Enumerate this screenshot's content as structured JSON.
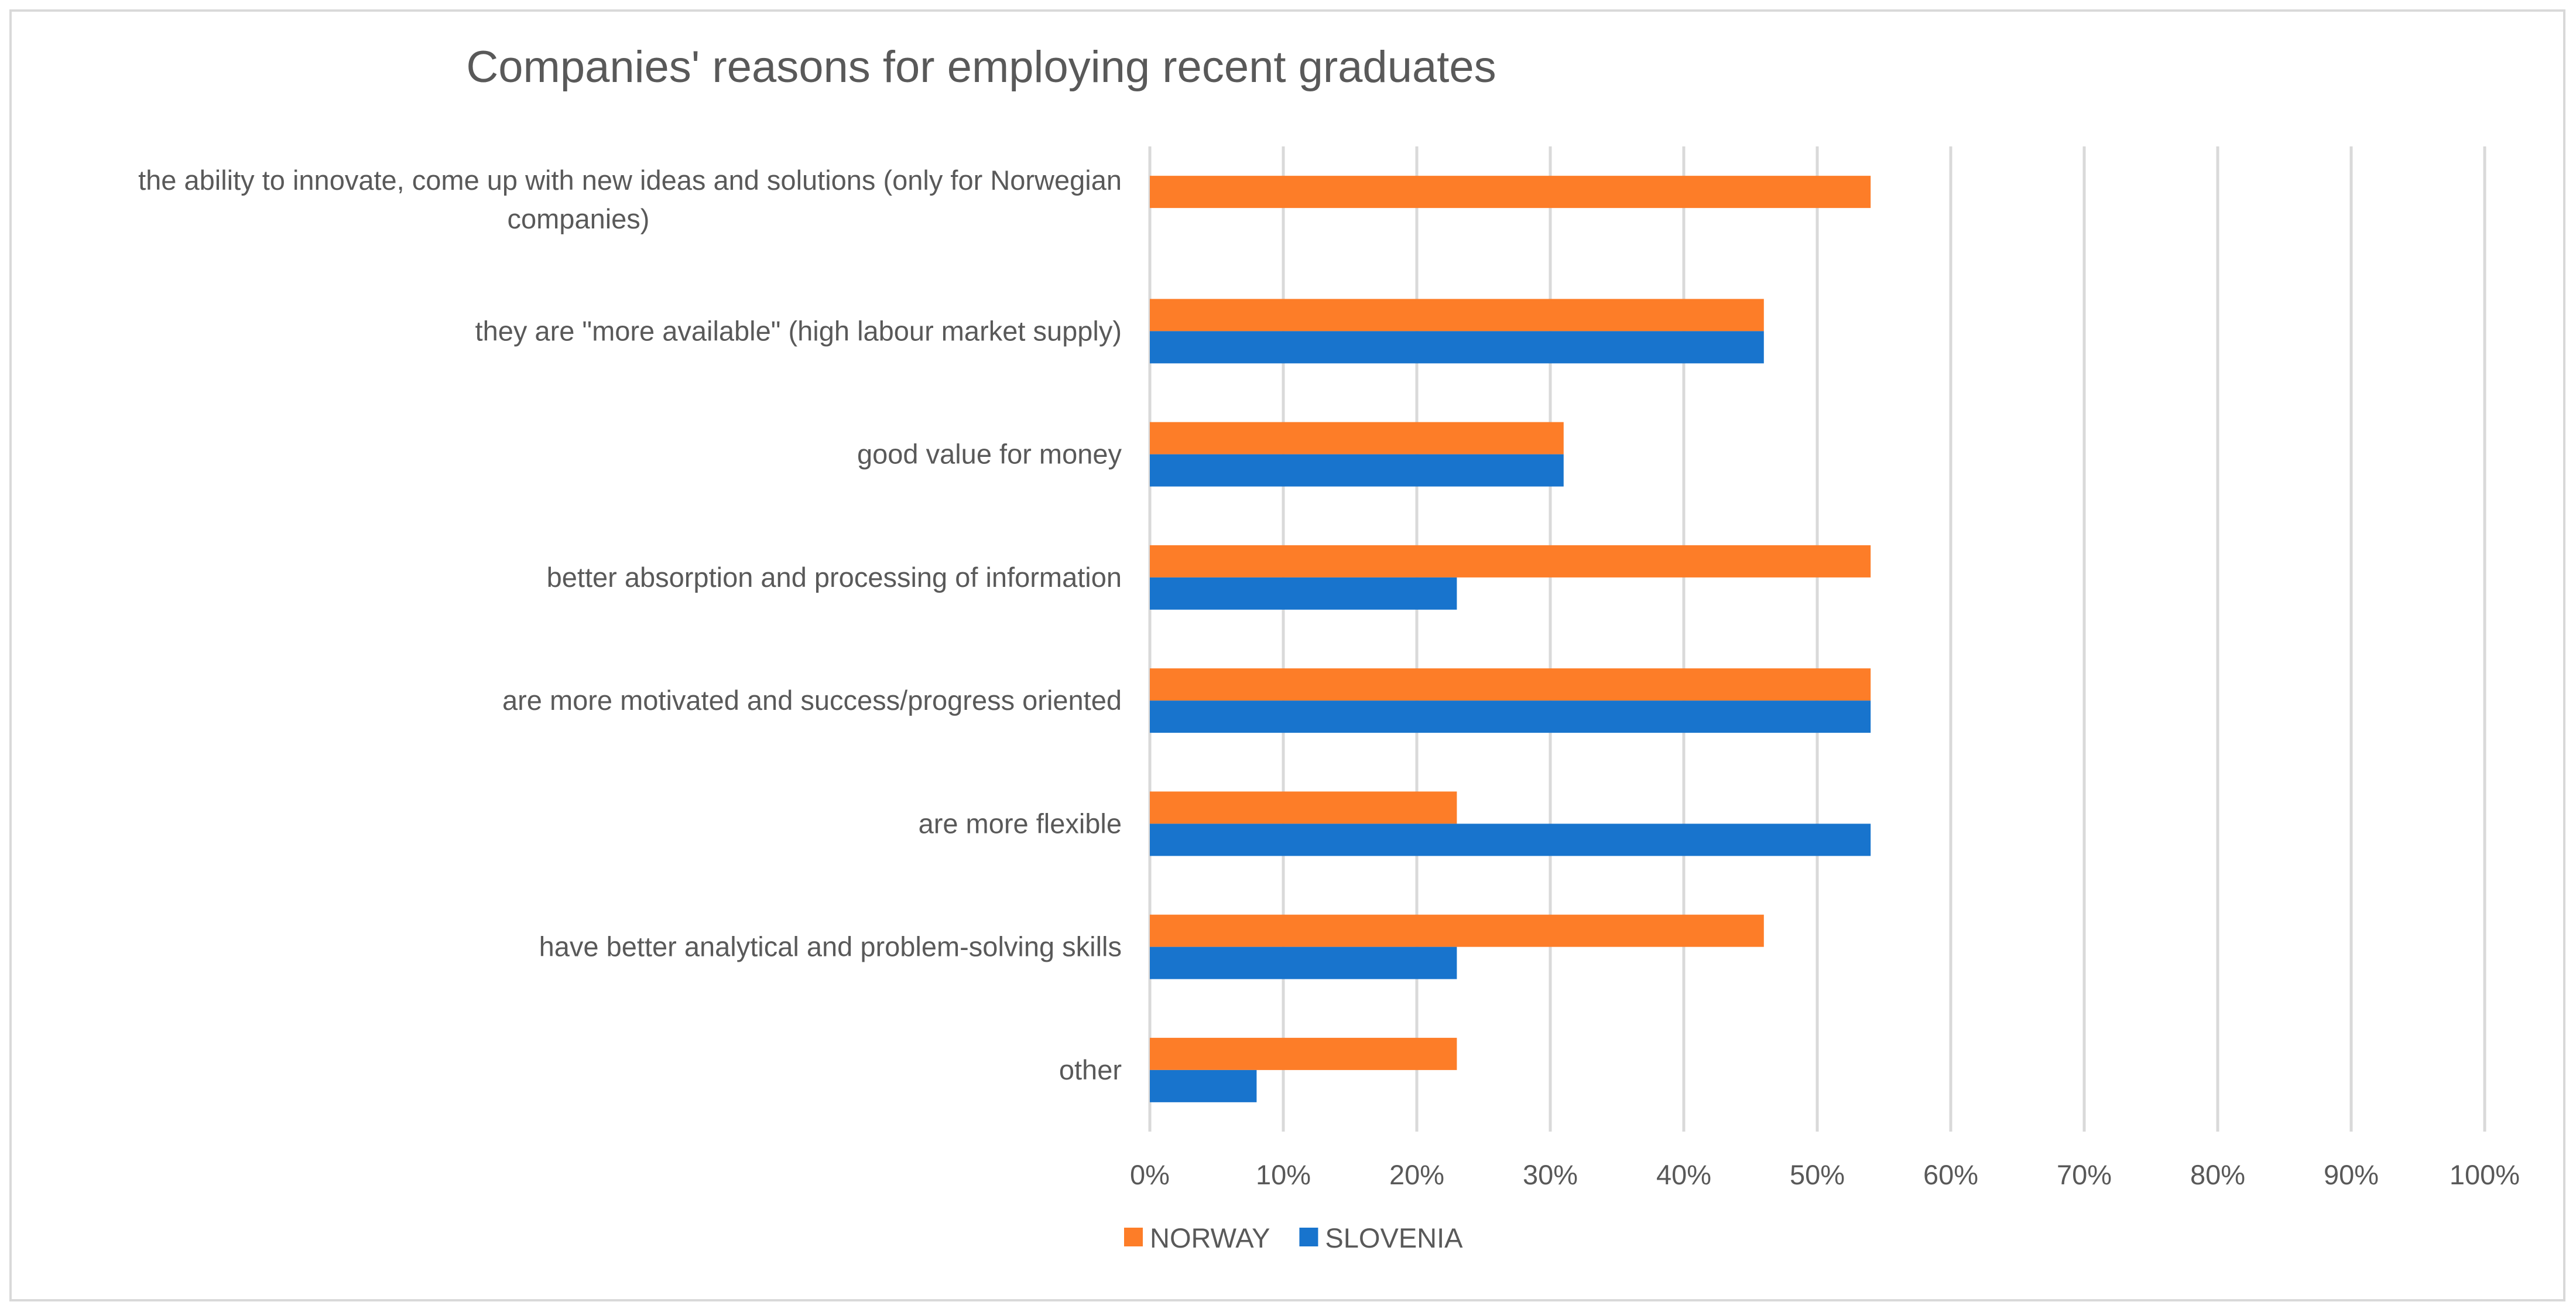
{
  "chart_data": {
    "type": "bar",
    "orientation": "horizontal",
    "title": "Companies' reasons for employing recent graduates",
    "categories": [
      "the ability to innovate, come up with new ideas and solutions (only for Norwegian companies)",
      "they are \"more available\" (high labour market supply)",
      "good value for money",
      "better absorption and processing of information",
      "are more motivated and success/progress oriented",
      "are more flexible",
      "have better analytical and problem-solving skills",
      "other"
    ],
    "series": [
      {
        "name": "NORWAY",
        "color": "#fd7d28",
        "values": [
          0.54,
          0.46,
          0.31,
          0.54,
          0.54,
          0.23,
          0.46,
          0.23
        ]
      },
      {
        "name": "SLOVENIA",
        "color": "#1874cd",
        "values": [
          null,
          0.46,
          0.31,
          0.23,
          0.54,
          0.54,
          0.23,
          0.08
        ]
      }
    ],
    "xlim": [
      0,
      1
    ],
    "x_ticks": [
      "0%",
      "10%",
      "20%",
      "30%",
      "40%",
      "50%",
      "60%",
      "70%",
      "80%",
      "90%",
      "100%"
    ],
    "grid": "vertical",
    "legend_position": "bottom"
  }
}
